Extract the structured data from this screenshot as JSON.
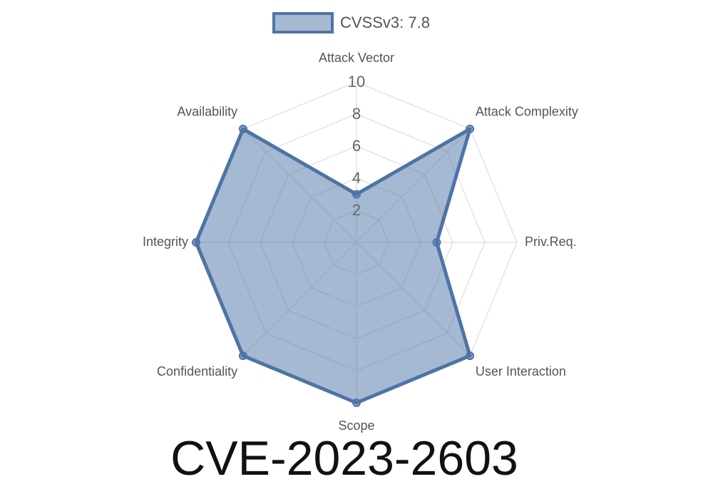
{
  "chart_data": {
    "type": "radar",
    "title": "CVE-2023-2603",
    "categories": [
      "Attack Vector",
      "Attack Complexity",
      "Priv.Req.",
      "User Interaction",
      "Scope",
      "Confidentiality",
      "Integrity",
      "Availability"
    ],
    "series": [
      {
        "name": "CVSSv3: 7.8",
        "color": "#4e74a6",
        "values": [
          3,
          10,
          5,
          10,
          10,
          10,
          10,
          10
        ]
      }
    ],
    "ylim": [
      0,
      10
    ],
    "yticks": [
      2,
      4,
      6,
      8,
      10
    ],
    "grid": true
  }
}
